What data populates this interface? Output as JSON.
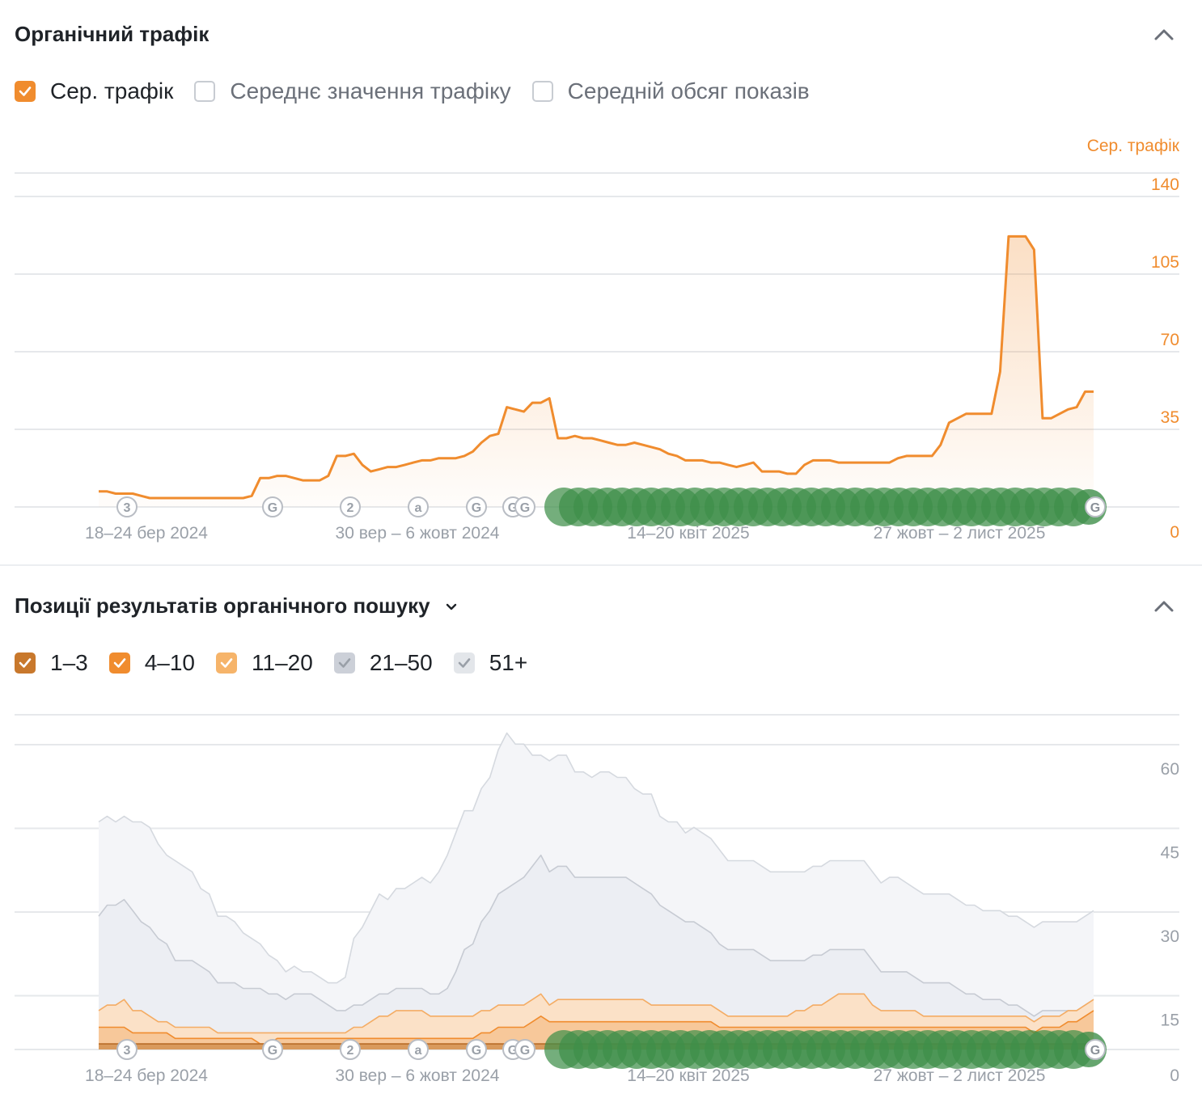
{
  "traffic_section": {
    "title": "Органічний трафік",
    "options": [
      {
        "label": "Сер. трафік",
        "checked": true,
        "color": "#f08c2e"
      },
      {
        "label": "Середнє значення трафіку",
        "checked": false
      },
      {
        "label": "Середній обсяг показів",
        "checked": false
      }
    ],
    "collapse_icon": "chevron-up-icon"
  },
  "positions_section": {
    "title": "Позиції результатів органічного пошуку",
    "dropdown_icon": "chevron-down-icon",
    "collapse_icon": "chevron-up-icon",
    "options": [
      {
        "label": "1–3",
        "checked": true,
        "color": "#c8782c"
      },
      {
        "label": "4–10",
        "checked": true,
        "color": "#f08c2e"
      },
      {
        "label": "11–20",
        "checked": true,
        "color": "#f6b46a"
      },
      {
        "label": "21–50",
        "checked": true,
        "color": "#ccd0d8"
      },
      {
        "label": "51+",
        "checked": true,
        "color": "#e3e6ea"
      }
    ]
  },
  "chart_data": [
    {
      "type": "area",
      "y_axis_label": "Сер. трафік",
      "y_ticks": [
        "0",
        "35",
        "70",
        "105",
        "140"
      ],
      "ylim": [
        0,
        150
      ],
      "x_tick_labels": [
        "18–24 бер 2024",
        "30 вер – 6 жовт 2024",
        "14–20 квіт 2025",
        "27 жовт – 2 лист 2025"
      ],
      "x_tick_weeks": [
        5,
        32,
        59,
        86
      ],
      "grid": true,
      "series": [
        {
          "color": "#f08c2e",
          "values": [
            7,
            7,
            6,
            6,
            6,
            5,
            4,
            4,
            4,
            4,
            4,
            4,
            4,
            4,
            4,
            4,
            4,
            4,
            5,
            13,
            13,
            14,
            14,
            13,
            12,
            12,
            12,
            14,
            23,
            23,
            24,
            19,
            16,
            17,
            18,
            18,
            19,
            20,
            21,
            21,
            22,
            22,
            22,
            23,
            25,
            29,
            32,
            33,
            45,
            44,
            43,
            47,
            47,
            49,
            31,
            31,
            32,
            31,
            31,
            30,
            29,
            28,
            28,
            29,
            28,
            27,
            26,
            24,
            23,
            21,
            21,
            21,
            20,
            20,
            19,
            18,
            19,
            20,
            16,
            16,
            16,
            15,
            15,
            19,
            21,
            21,
            21,
            20,
            20,
            20,
            20,
            20,
            20,
            20,
            22,
            23,
            23,
            23,
            23,
            28,
            38,
            40,
            42,
            42,
            42,
            42,
            61,
            122,
            122,
            122,
            116,
            40,
            40,
            42,
            44,
            45,
            52,
            52
          ]
        }
      ],
      "event_markers": [
        {
          "label": "3",
          "icon": "number-marker"
        },
        {
          "label": "G",
          "icon": "google-update-icon"
        },
        {
          "label": "2",
          "icon": "number-marker"
        },
        {
          "label": "a",
          "icon": "amazon-marker-icon"
        },
        {
          "label": "G",
          "icon": "google-update-icon"
        },
        {
          "label": "G",
          "icon": "google-update-icon"
        },
        {
          "label": "G",
          "icon": "google-update-icon"
        }
      ]
    },
    {
      "type": "area",
      "y_ticks": [
        "0",
        "15",
        "30",
        "45",
        "60"
      ],
      "ylim": [
        0,
        66
      ],
      "x_tick_labels": [
        "18–24 бер 2024",
        "30 вер – 6 жовт 2024",
        "14–20 квіт 2025",
        "27 жовт – 2 лист 2025"
      ],
      "x_tick_weeks": [
        5,
        32,
        59,
        86
      ],
      "grid": true,
      "stacked": true,
      "series": [
        {
          "name": "1–3",
          "color": "#c8782c",
          "values": [
            1,
            1,
            1,
            1,
            1,
            1,
            1,
            1,
            1,
            1,
            1,
            1,
            1,
            1,
            1,
            1,
            1,
            1,
            1,
            1,
            1,
            1,
            1,
            1,
            1,
            1,
            1,
            1,
            1,
            1,
            1,
            1,
            1,
            1,
            1,
            1,
            1,
            1,
            1,
            1,
            1,
            1,
            1,
            1,
            1,
            1,
            1,
            1,
            1,
            1,
            1,
            1,
            1,
            1,
            1,
            1,
            1,
            1,
            1,
            1,
            1,
            1,
            1,
            1,
            1,
            1,
            1,
            1,
            1,
            1,
            1,
            1,
            1,
            1,
            1,
            1,
            1,
            1,
            1,
            1,
            1,
            1,
            1,
            1,
            1,
            1,
            1,
            1,
            1,
            1,
            1,
            1,
            1,
            1,
            1,
            1,
            1,
            1,
            1,
            1,
            1,
            1,
            1,
            1,
            1,
            1,
            1,
            1,
            1,
            1,
            1,
            1,
            1,
            1,
            1,
            1,
            1,
            1
          ]
        },
        {
          "name": "4–10",
          "color": "#f08c2e",
          "values": [
            3,
            3,
            3,
            3,
            2,
            2,
            2,
            2,
            2,
            1,
            1,
            1,
            1,
            1,
            1,
            1,
            1,
            1,
            1,
            0,
            0,
            1,
            1,
            1,
            1,
            1,
            1,
            1,
            1,
            1,
            1,
            1,
            1,
            1,
            1,
            1,
            1,
            1,
            1,
            1,
            1,
            1,
            1,
            1,
            1,
            2,
            2,
            3,
            3,
            3,
            3,
            4,
            5,
            4,
            4,
            4,
            4,
            4,
            4,
            4,
            4,
            4,
            4,
            4,
            4,
            4,
            4,
            4,
            4,
            4,
            4,
            4,
            4,
            3,
            3,
            3,
            3,
            3,
            3,
            3,
            3,
            3,
            3,
            3,
            3,
            3,
            3,
            3,
            3,
            3,
            3,
            3,
            3,
            3,
            3,
            3,
            3,
            3,
            3,
            3,
            3,
            3,
            3,
            3,
            3,
            3,
            3,
            3,
            3,
            3,
            2,
            3,
            3,
            3,
            4,
            4,
            5,
            6
          ]
        },
        {
          "name": "11–20",
          "color": "#f6b46a",
          "values": [
            3,
            4,
            4,
            5,
            4,
            4,
            3,
            2,
            2,
            2,
            2,
            2,
            2,
            2,
            1,
            1,
            1,
            1,
            1,
            2,
            2,
            1,
            1,
            1,
            1,
            1,
            1,
            1,
            1,
            1,
            2,
            2,
            3,
            4,
            4,
            5,
            5,
            5,
            5,
            4,
            4,
            4,
            4,
            4,
            4,
            4,
            4,
            4,
            4,
            4,
            4,
            4,
            4,
            3,
            4,
            4,
            4,
            4,
            4,
            4,
            4,
            4,
            4,
            4,
            4,
            3,
            3,
            3,
            3,
            3,
            3,
            3,
            3,
            3,
            2,
            2,
            2,
            2,
            2,
            2,
            2,
            2,
            3,
            3,
            4,
            4,
            5,
            6,
            6,
            6,
            6,
            4,
            3,
            3,
            3,
            3,
            3,
            2,
            2,
            2,
            2,
            2,
            2,
            2,
            2,
            2,
            2,
            2,
            2,
            2,
            2,
            2,
            2,
            2,
            2,
            2,
            2,
            2
          ]
        },
        {
          "name": "21–50",
          "color": "#ccd0d8",
          "values": [
            17,
            18,
            18,
            18,
            18,
            16,
            16,
            15,
            14,
            12,
            12,
            12,
            11,
            10,
            9,
            9,
            9,
            8,
            8,
            8,
            7,
            7,
            6,
            7,
            7,
            7,
            6,
            5,
            4,
            4,
            4,
            4,
            4,
            4,
            4,
            4,
            4,
            4,
            4,
            4,
            4,
            5,
            8,
            12,
            13,
            16,
            18,
            20,
            21,
            22,
            23,
            24,
            25,
            24,
            24,
            24,
            22,
            22,
            22,
            22,
            22,
            22,
            22,
            21,
            20,
            20,
            18,
            17,
            16,
            15,
            15,
            14,
            13,
            12,
            12,
            12,
            12,
            12,
            11,
            10,
            10,
            10,
            9,
            9,
            9,
            9,
            9,
            8,
            8,
            8,
            8,
            8,
            7,
            7,
            7,
            7,
            6,
            6,
            6,
            6,
            6,
            5,
            4,
            4,
            3,
            3,
            3,
            2,
            2,
            1,
            1,
            1,
            1,
            1,
            0,
            0,
            0,
            0
          ]
        },
        {
          "name": "51+",
          "color": "#e3e6ea",
          "values": [
            17,
            16,
            15,
            15,
            16,
            18,
            18,
            17,
            16,
            18,
            17,
            16,
            14,
            14,
            12,
            12,
            11,
            10,
            9,
            8,
            7,
            6,
            5,
            5,
            4,
            4,
            4,
            4,
            5,
            6,
            12,
            14,
            16,
            18,
            17,
            18,
            18,
            19,
            20,
            20,
            22,
            24,
            25,
            25,
            24,
            24,
            24,
            26,
            28,
            25,
            24,
            20,
            18,
            20,
            20,
            20,
            19,
            19,
            18,
            19,
            19,
            18,
            18,
            17,
            17,
            18,
            16,
            16,
            17,
            16,
            17,
            17,
            17,
            17,
            16,
            16,
            16,
            16,
            16,
            16,
            16,
            16,
            16,
            16,
            16,
            16,
            16,
            16,
            16,
            16,
            16,
            16,
            16,
            17,
            17,
            16,
            16,
            16,
            16,
            16,
            16,
            16,
            16,
            16,
            16,
            16,
            16,
            16,
            16,
            16,
            16,
            16,
            16,
            16,
            16,
            16,
            16,
            16
          ]
        }
      ]
    }
  ]
}
